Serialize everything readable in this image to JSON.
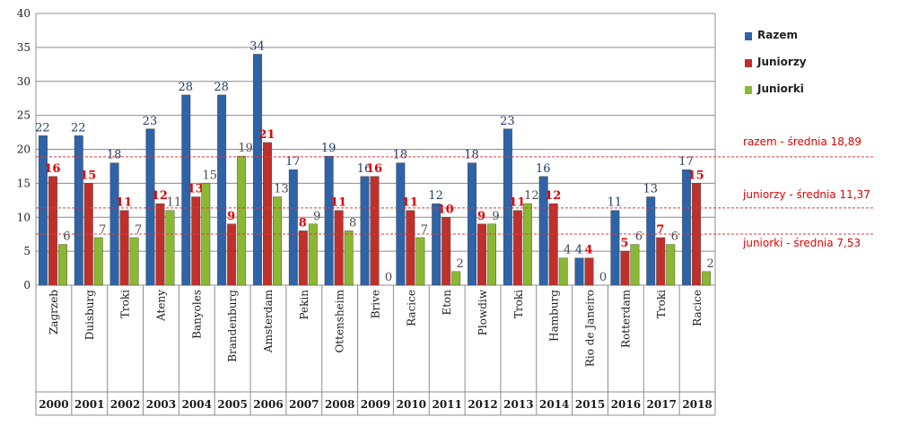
{
  "chart_data": {
    "type": "bar",
    "ylim": [
      0,
      40
    ],
    "yticks": [
      0,
      5,
      10,
      15,
      20,
      25,
      30,
      35,
      40
    ],
    "categories": [
      {
        "place": "Zagrzeb",
        "year": "2000"
      },
      {
        "place": "Duisburg",
        "year": "2001"
      },
      {
        "place": "Troki",
        "year": "2002"
      },
      {
        "place": "Ateny",
        "year": "2003"
      },
      {
        "place": "Banyoles",
        "year": "2004"
      },
      {
        "place": "Brandenburg",
        "year": "2005"
      },
      {
        "place": "Amsterdam",
        "year": "2006"
      },
      {
        "place": "Pekin",
        "year": "2007"
      },
      {
        "place": "Ottensheim",
        "year": "2008"
      },
      {
        "place": "Brive",
        "year": "2009"
      },
      {
        "place": "Racice",
        "year": "2010"
      },
      {
        "place": "Eton",
        "year": "2011"
      },
      {
        "place": "Plowdiw",
        "year": "2012"
      },
      {
        "place": "Troki",
        "year": "2013"
      },
      {
        "place": "Hamburg",
        "year": "2014"
      },
      {
        "place": "Rio de Janeiro",
        "year": "2015"
      },
      {
        "place": "Rotterdam",
        "year": "2016"
      },
      {
        "place": "Troki",
        "year": "2017"
      },
      {
        "place": "Racice",
        "year": "2018"
      }
    ],
    "series": [
      {
        "name": "Razem",
        "color": "#2f63a8",
        "label_color": "#1f3d6b",
        "values": [
          22,
          22,
          18,
          23,
          28,
          28,
          34,
          17,
          19,
          16,
          18,
          12,
          18,
          23,
          16,
          4,
          11,
          13,
          17
        ]
      },
      {
        "name": "Juniorzy",
        "color": "#c0302b",
        "label_color": "#e00000",
        "values": [
          16,
          15,
          11,
          12,
          13,
          9,
          21,
          8,
          11,
          16,
          11,
          10,
          9,
          11,
          12,
          4,
          5,
          7,
          15
        ]
      },
      {
        "name": "Juniorki",
        "color": "#8bb832",
        "label_color": "#4a4a4a",
        "values": [
          6,
          7,
          7,
          11,
          15,
          19,
          13,
          9,
          8,
          0,
          7,
          2,
          9,
          12,
          4,
          0,
          6,
          6,
          2
        ]
      }
    ],
    "averages": [
      {
        "label": "razem - średnia 18,89",
        "value": 18.89
      },
      {
        "label": "juniorzy - średnia 11,37",
        "value": 11.37
      },
      {
        "label": "juniorki - średnia 7,53",
        "value": 7.53
      }
    ],
    "grid": true,
    "legend_position": "right"
  }
}
